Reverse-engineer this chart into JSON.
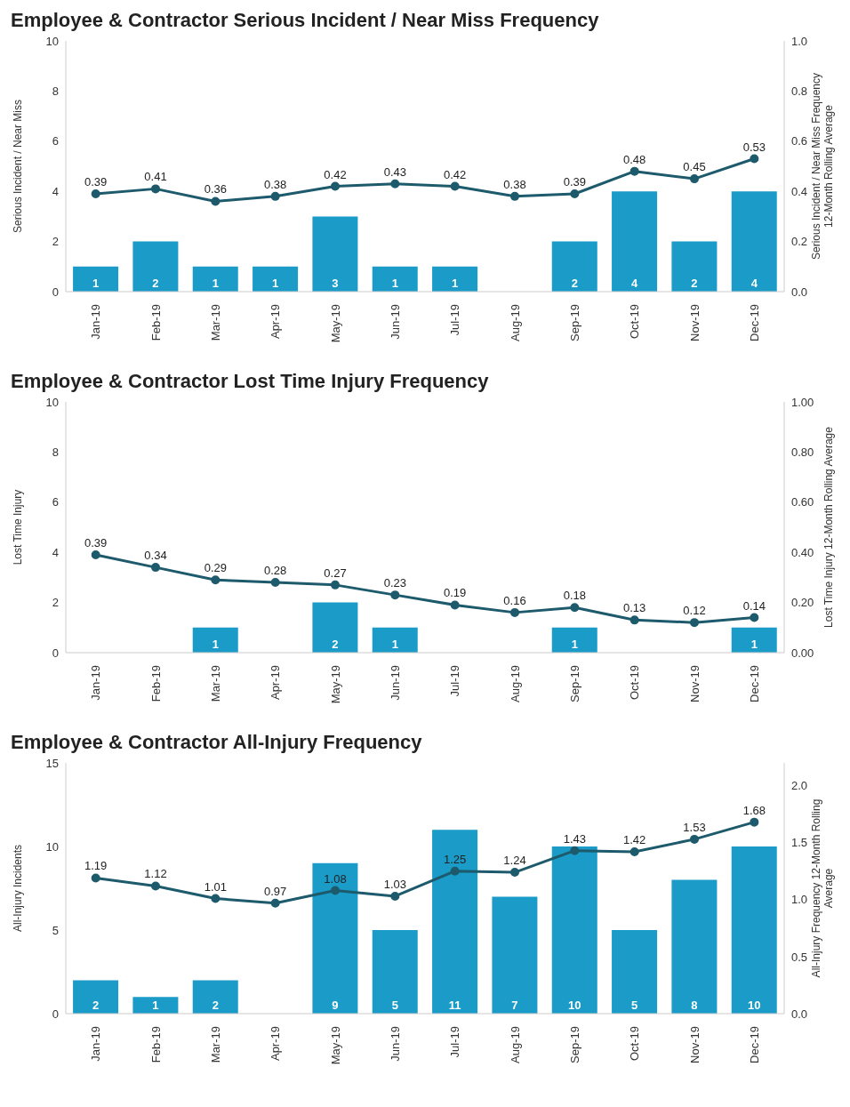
{
  "chart_data": [
    {
      "type": "bar",
      "title": "Employee & Contractor Serious Incident / Near Miss Frequency",
      "ylabel": "Serious Incident / Near Miss",
      "y2label": "Serious Incident / Near Miss Frequency 12-Month Rolling Average",
      "categories": [
        "Jan-19",
        "Feb-19",
        "Mar-19",
        "Apr-19",
        "May-19",
        "Jun-19",
        "Jul-19",
        "Aug-19",
        "Sep-19",
        "Oct-19",
        "Nov-19",
        "Dec-19"
      ],
      "series": [
        {
          "color": "#1a9bc8",
          "values": [
            1,
            2,
            1,
            1,
            3,
            1,
            1,
            null,
            2,
            4,
            2,
            4
          ]
        },
        {
          "type": "line",
          "axis": "y2",
          "color": "#1d5a6c",
          "values": [
            0.39,
            0.41,
            0.36,
            0.38,
            0.42,
            0.43,
            0.42,
            0.38,
            0.39,
            0.48,
            0.45,
            0.53
          ]
        }
      ],
      "ylim": [
        0,
        10
      ],
      "yticks": [
        0,
        2,
        4,
        6,
        8,
        10
      ],
      "y2lim": [
        0,
        1
      ],
      "y2ticks": [
        {
          "value": 0,
          "label": "0.0"
        },
        0.2,
        0.4,
        0.6,
        0.8,
        {
          "value": 1,
          "label": "1.0"
        }
      ],
      "data_labels": true,
      "marker": "circle",
      "line_style": "solid",
      "grid": false,
      "legend": false
    },
    {
      "type": "bar",
      "title": "Employee & Contractor Lost Time Injury Frequency",
      "ylabel": "Lost Time Injury",
      "y2label": "Lost Time Injury 12-Month Rolling Average",
      "categories": [
        "Jan-19",
        "Feb-19",
        "Mar-19",
        "Apr-19",
        "May-19",
        "Jun-19",
        "Jul-19",
        "Aug-19",
        "Sep-19",
        "Oct-19",
        "Nov-19",
        "Dec-19"
      ],
      "series": [
        {
          "color": "#1a9bc8",
          "values": [
            null,
            null,
            1,
            null,
            2,
            1,
            null,
            null,
            1,
            null,
            null,
            1
          ]
        },
        {
          "type": "line",
          "axis": "y2",
          "color": "#1d5a6c",
          "values": [
            0.39,
            0.34,
            0.29,
            0.28,
            0.27,
            0.23,
            0.19,
            0.16,
            0.18,
            0.13,
            0.12,
            0.14
          ]
        }
      ],
      "ylim": [
        0,
        10
      ],
      "yticks": [
        0,
        2,
        4,
        6,
        8,
        10
      ],
      "y2lim": [
        0,
        1
      ],
      "y2ticks": [
        {
          "value": 0,
          "label": "0.00"
        },
        {
          "value": 0.2,
          "label": "0.20"
        },
        {
          "value": 0.4,
          "label": "0.40"
        },
        {
          "value": 0.6,
          "label": "0.60"
        },
        {
          "value": 0.8,
          "label": "0.80"
        },
        {
          "value": 1,
          "label": "1.00"
        }
      ],
      "data_labels": true,
      "marker": "circle",
      "line_style": "solid",
      "grid": false,
      "legend": false
    },
    {
      "type": "bar",
      "title": "Employee & Contractor All-Injury Frequency",
      "ylabel": "All-Injury Incidents",
      "y2label": "All-Injury Frequency 12-Month Rolling Average",
      "categories": [
        "Jan-19",
        "Feb-19",
        "Mar-19",
        "Apr-19",
        "May-19",
        "Jun-19",
        "Jul-19",
        "Aug-19",
        "Sep-19",
        "Oct-19",
        "Nov-19",
        "Dec-19"
      ],
      "series": [
        {
          "color": "#1a9bc8",
          "values": [
            2,
            1,
            2,
            null,
            9,
            5,
            11,
            7,
            10,
            5,
            8,
            10
          ]
        },
        {
          "type": "line",
          "axis": "y2",
          "color": "#1d5a6c",
          "values": [
            1.19,
            1.12,
            1.01,
            0.97,
            1.08,
            1.03,
            1.25,
            1.24,
            1.43,
            1.42,
            1.53,
            1.68
          ]
        }
      ],
      "ylim": [
        0,
        15
      ],
      "yticks": [
        0,
        5,
        10,
        15
      ],
      "y2lim": [
        0,
        2.2
      ],
      "y2ticks": [
        {
          "value": 0,
          "label": "0.0"
        },
        0.5,
        {
          "value": 1,
          "label": "1.0"
        },
        1.5,
        {
          "value": 2,
          "label": "2.0"
        }
      ],
      "data_labels": true,
      "marker": "circle",
      "line_style": "solid",
      "grid": false,
      "legend": false
    }
  ]
}
